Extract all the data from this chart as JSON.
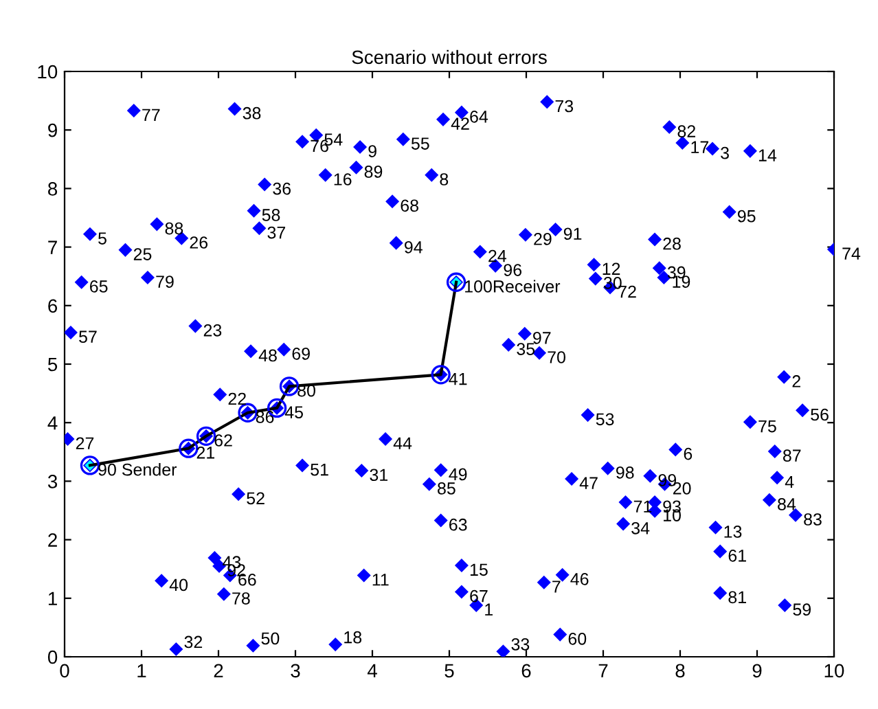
{
  "chart_data": {
    "type": "scatter",
    "title": "Scenario without errors",
    "xlim": [
      0,
      10
    ],
    "ylim": [
      0,
      10
    ],
    "xticks": [
      0,
      1,
      2,
      3,
      4,
      5,
      6,
      7,
      8,
      9,
      10
    ],
    "yticks": [
      0,
      1,
      2,
      3,
      4,
      5,
      6,
      7,
      8,
      9,
      10
    ],
    "grid": false,
    "legend": false,
    "series": [
      {
        "marker": "diamond",
        "color": "#0000ff",
        "x": [
          5.35,
          9.35,
          8.42,
          9.26,
          0.33,
          7.94,
          6.23,
          4.77,
          3.84,
          7.67,
          3.89,
          6.88,
          8.46,
          8.91,
          5.16,
          3.39,
          8.03,
          3.52,
          7.79,
          7.8,
          1.61,
          2.02,
          1.7,
          5.4,
          0.79,
          1.52,
          0.04,
          7.67,
          5.99,
          6.9,
          3.86,
          1.45,
          5.7,
          7.26,
          5.77,
          2.6,
          2.53,
          2.21,
          7.73,
          1.26,
          4.89,
          4.92,
          1.95,
          4.17,
          2.76,
          6.47,
          6.59,
          2.42,
          4.89,
          2.45,
          3.09,
          2.26,
          6.8,
          3.27,
          4.4,
          9.59,
          0.08,
          2.46,
          9.36,
          6.44,
          8.52,
          1.84,
          4.89,
          5.16,
          0.22,
          2.15,
          5.16,
          4.26,
          2.85,
          6.17,
          7.29,
          7.09,
          6.27,
          10.0,
          8.91,
          3.09,
          0.9,
          2.07,
          1.08,
          2.92,
          8.52,
          7.86,
          9.5,
          9.16,
          4.74,
          2.38,
          9.23,
          1.2,
          3.79,
          0.33,
          6.38,
          2.01,
          7.67,
          4.31,
          8.64,
          5.6,
          5.98,
          7.06,
          7.61,
          5.09
        ],
        "values": [
          0.88,
          4.78,
          8.68,
          3.06,
          7.22,
          3.54,
          1.27,
          8.23,
          8.71,
          2.49,
          1.39,
          6.7,
          2.21,
          8.64,
          1.56,
          8.23,
          8.78,
          0.21,
          6.48,
          2.95,
          3.56,
          4.48,
          5.65,
          6.92,
          6.95,
          7.15,
          3.72,
          7.13,
          7.21,
          6.46,
          3.18,
          0.13,
          0.09,
          2.27,
          5.33,
          8.07,
          7.32,
          9.36,
          6.64,
          1.3,
          4.82,
          9.18,
          1.69,
          3.72,
          4.25,
          1.4,
          3.04,
          5.22,
          3.19,
          0.19,
          3.27,
          2.78,
          4.13,
          8.91,
          8.84,
          4.21,
          5.54,
          7.62,
          0.88,
          0.38,
          1.8,
          3.77,
          2.33,
          9.3,
          6.4,
          1.39,
          1.11,
          7.78,
          5.25,
          5.19,
          2.64,
          6.31,
          9.48,
          6.96,
          4.01,
          8.8,
          9.33,
          1.07,
          6.48,
          4.62,
          1.09,
          9.05,
          2.42,
          2.68,
          2.95,
          4.17,
          3.51,
          7.39,
          8.36,
          3.27,
          7.3,
          1.55,
          2.64,
          7.07,
          7.6,
          6.68,
          5.52,
          3.22,
          3.09,
          6.4
        ],
        "colors": [
          "#0000ff",
          "#0000ff",
          "#0000ff",
          "#0000ff",
          "#0000ff",
          "#0000ff",
          "#0000ff",
          "#0000ff",
          "#0000ff",
          "#0000ff",
          "#0000ff",
          "#0000ff",
          "#0000ff",
          "#0000ff",
          "#0000ff",
          "#0000ff",
          "#0000ff",
          "#0000ff",
          "#0000ff",
          "#0000ff",
          "#0000ff",
          "#0000ff",
          "#0000ff",
          "#0000ff",
          "#0000ff",
          "#0000ff",
          "#0000ff",
          "#0000ff",
          "#0000ff",
          "#0000ff",
          "#0000ff",
          "#0000ff",
          "#0000ff",
          "#0000ff",
          "#0000ff",
          "#0000ff",
          "#0000ff",
          "#0000ff",
          "#0000ff",
          "#0000ff",
          "#0000ff",
          "#0000ff",
          "#0000ff",
          "#0000ff",
          "#0000ff",
          "#0000ff",
          "#0000ff",
          "#0000ff",
          "#0000ff",
          "#0000ff",
          "#0000ff",
          "#0000ff",
          "#0000ff",
          "#0000ff",
          "#0000ff",
          "#0000ff",
          "#0000ff",
          "#0000ff",
          "#0000ff",
          "#0000ff",
          "#0000ff",
          "#0000ff",
          "#0000ff",
          "#0000ff",
          "#0000ff",
          "#0000ff",
          "#0000ff",
          "#0000ff",
          "#0000ff",
          "#0000ff",
          "#0000ff",
          "#0000ff",
          "#0000ff",
          "#0000ff",
          "#0000ff",
          "#0000ff",
          "#0000ff",
          "#0000ff",
          "#0000ff",
          "#0000ff",
          "#0000ff",
          "#0000ff",
          "#0000ff",
          "#0000ff",
          "#0000ff",
          "#0000ff",
          "#0000ff",
          "#0000ff",
          "#0000ff",
          "#00ffff",
          "#0000ff",
          "#0000ff",
          "#0000ff",
          "#0000ff",
          "#0000ff",
          "#0000ff",
          "#0000ff",
          "#0000ff",
          "#0000ff",
          "#00ffff"
        ]
      },
      {
        "type": "line",
        "marker": "circle",
        "color": "#000000",
        "x": [
          0.33,
          1.61,
          1.84,
          2.38,
          2.76,
          2.92,
          4.89,
          5.09
        ],
        "values": [
          3.27,
          3.56,
          3.77,
          4.17,
          4.25,
          4.62,
          4.82,
          6.4
        ]
      }
    ],
    "annotations": [
      {
        "text": "1",
        "x": 5.35,
        "y": 0.88
      },
      {
        "text": "2",
        "x": 9.35,
        "y": 4.78
      },
      {
        "text": "3",
        "x": 8.42,
        "y": 8.68
      },
      {
        "text": "4",
        "x": 9.26,
        "y": 3.06
      },
      {
        "text": "5",
        "x": 0.33,
        "y": 7.22
      },
      {
        "text": "6",
        "x": 7.94,
        "y": 3.54
      },
      {
        "text": "7",
        "x": 6.23,
        "y": 1.27
      },
      {
        "text": "8",
        "x": 4.77,
        "y": 8.23
      },
      {
        "text": "9",
        "x": 3.84,
        "y": 8.71
      },
      {
        "text": "10",
        "x": 7.67,
        "y": 2.49
      },
      {
        "text": "11",
        "x": 3.89,
        "y": 1.39
      },
      {
        "text": "12",
        "x": 6.88,
        "y": 6.7
      },
      {
        "text": "13",
        "x": 8.46,
        "y": 2.21
      },
      {
        "text": "14",
        "x": 8.91,
        "y": 8.64
      },
      {
        "text": "15",
        "x": 5.16,
        "y": 1.56
      },
      {
        "text": "16",
        "x": 3.39,
        "y": 8.23
      },
      {
        "text": "17",
        "x": 8.03,
        "y": 8.78
      },
      {
        "text": "18",
        "x": 3.52,
        "y": 0.21
      },
      {
        "text": "19",
        "x": 7.79,
        "y": 6.48
      },
      {
        "text": "20",
        "x": 7.8,
        "y": 2.95
      },
      {
        "text": "21",
        "x": 1.61,
        "y": 3.56
      },
      {
        "text": "22",
        "x": 2.02,
        "y": 4.48
      },
      {
        "text": "23",
        "x": 1.7,
        "y": 5.65
      },
      {
        "text": "24",
        "x": 5.4,
        "y": 6.92
      },
      {
        "text": "25",
        "x": 0.79,
        "y": 6.95
      },
      {
        "text": "26",
        "x": 1.52,
        "y": 7.15
      },
      {
        "text": "27",
        "x": 0.04,
        "y": 3.72
      },
      {
        "text": "28",
        "x": 7.67,
        "y": 7.13
      },
      {
        "text": "29",
        "x": 5.99,
        "y": 7.21
      },
      {
        "text": "30",
        "x": 6.9,
        "y": 6.46
      },
      {
        "text": "31",
        "x": 3.86,
        "y": 3.18
      },
      {
        "text": "32",
        "x": 1.45,
        "y": 0.13
      },
      {
        "text": "33",
        "x": 5.7,
        "y": 0.09
      },
      {
        "text": "34",
        "x": 7.26,
        "y": 2.27
      },
      {
        "text": "35",
        "x": 5.77,
        "y": 5.33
      },
      {
        "text": "36",
        "x": 2.6,
        "y": 8.07
      },
      {
        "text": "37",
        "x": 2.53,
        "y": 7.32
      },
      {
        "text": "38",
        "x": 2.21,
        "y": 9.36
      },
      {
        "text": "39",
        "x": 7.73,
        "y": 6.64
      },
      {
        "text": "40",
        "x": 1.26,
        "y": 1.3
      },
      {
        "text": "41",
        "x": 4.89,
        "y": 4.82
      },
      {
        "text": "42",
        "x": 4.92,
        "y": 9.18
      },
      {
        "text": "43",
        "x": 1.95,
        "y": 1.69
      },
      {
        "text": "44",
        "x": 4.17,
        "y": 3.72
      },
      {
        "text": "45",
        "x": 2.76,
        "y": 4.25
      },
      {
        "text": "46",
        "x": 6.47,
        "y": 1.4
      },
      {
        "text": "47",
        "x": 6.59,
        "y": 3.04
      },
      {
        "text": "48",
        "x": 2.42,
        "y": 5.22
      },
      {
        "text": "49",
        "x": 4.89,
        "y": 3.19
      },
      {
        "text": "50",
        "x": 2.45,
        "y": 0.19
      },
      {
        "text": "51",
        "x": 3.09,
        "y": 3.27
      },
      {
        "text": "52",
        "x": 2.26,
        "y": 2.78
      },
      {
        "text": "53",
        "x": 6.8,
        "y": 4.13
      },
      {
        "text": "54",
        "x": 3.27,
        "y": 8.91
      },
      {
        "text": "55",
        "x": 4.4,
        "y": 8.84
      },
      {
        "text": "56",
        "x": 9.59,
        "y": 4.21
      },
      {
        "text": "57",
        "x": 0.08,
        "y": 5.54
      },
      {
        "text": "58",
        "x": 2.46,
        "y": 7.62
      },
      {
        "text": "59",
        "x": 9.36,
        "y": 0.88
      },
      {
        "text": "60",
        "x": 6.44,
        "y": 0.38
      },
      {
        "text": "61",
        "x": 8.52,
        "y": 1.8
      },
      {
        "text": "62",
        "x": 1.84,
        "y": 3.77
      },
      {
        "text": "63",
        "x": 4.89,
        "y": 2.33
      },
      {
        "text": "64",
        "x": 5.16,
        "y": 9.3
      },
      {
        "text": "65",
        "x": 0.22,
        "y": 6.4
      },
      {
        "text": "66",
        "x": 2.15,
        "y": 1.39
      },
      {
        "text": "67",
        "x": 5.16,
        "y": 1.11
      },
      {
        "text": "68",
        "x": 4.26,
        "y": 7.78
      },
      {
        "text": "69",
        "x": 2.85,
        "y": 5.25
      },
      {
        "text": "70",
        "x": 6.17,
        "y": 5.19
      },
      {
        "text": "71",
        "x": 7.29,
        "y": 2.64
      },
      {
        "text": "72",
        "x": 7.09,
        "y": 6.31
      },
      {
        "text": "73",
        "x": 6.27,
        "y": 9.48
      },
      {
        "text": "74",
        "x": 10.0,
        "y": 6.96
      },
      {
        "text": "75",
        "x": 8.91,
        "y": 4.01
      },
      {
        "text": "76",
        "x": 3.09,
        "y": 8.8
      },
      {
        "text": "77",
        "x": 0.9,
        "y": 9.33
      },
      {
        "text": "78",
        "x": 2.07,
        "y": 1.07
      },
      {
        "text": "79",
        "x": 1.08,
        "y": 6.48
      },
      {
        "text": "80",
        "x": 2.92,
        "y": 4.62
      },
      {
        "text": "81",
        "x": 8.52,
        "y": 1.09
      },
      {
        "text": "82",
        "x": 7.86,
        "y": 9.05
      },
      {
        "text": "83",
        "x": 9.5,
        "y": 2.42
      },
      {
        "text": "84",
        "x": 9.16,
        "y": 2.68
      },
      {
        "text": "85",
        "x": 4.74,
        "y": 2.95
      },
      {
        "text": "86",
        "x": 2.38,
        "y": 4.17
      },
      {
        "text": "87",
        "x": 9.23,
        "y": 3.51
      },
      {
        "text": "88",
        "x": 1.2,
        "y": 7.39
      },
      {
        "text": "89",
        "x": 3.79,
        "y": 8.36
      },
      {
        "text": "90 Sender",
        "x": 0.33,
        "y": 3.27
      },
      {
        "text": "91",
        "x": 6.38,
        "y": 7.3
      },
      {
        "text": "92",
        "x": 2.01,
        "y": 1.55
      },
      {
        "text": "93",
        "x": 7.67,
        "y": 2.64
      },
      {
        "text": "94",
        "x": 4.31,
        "y": 7.07
      },
      {
        "text": "95",
        "x": 8.64,
        "y": 7.6
      },
      {
        "text": "96",
        "x": 5.6,
        "y": 6.68
      },
      {
        "text": "97",
        "x": 5.98,
        "y": 5.52
      },
      {
        "text": "98",
        "x": 7.06,
        "y": 3.22
      },
      {
        "text": "99",
        "x": 7.61,
        "y": 3.09
      },
      {
        "text": "100Receiver",
        "x": 5.09,
        "y": 6.4
      }
    ]
  }
}
